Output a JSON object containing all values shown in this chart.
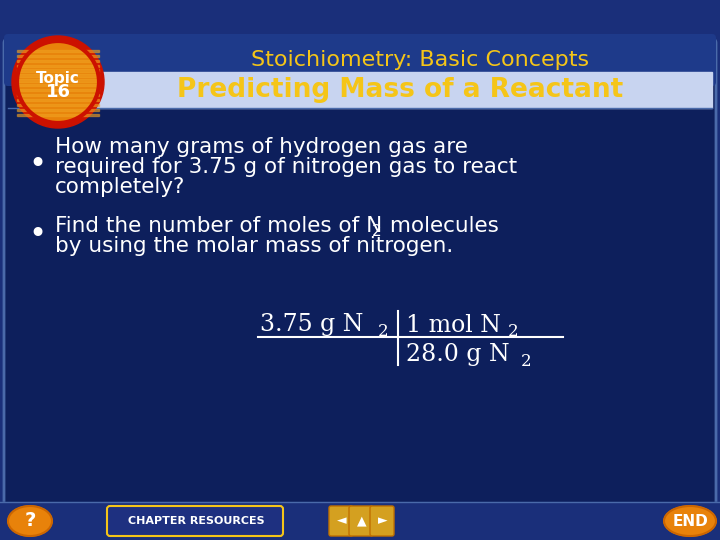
{
  "bg_color": "#0d1f5c",
  "outer_bg": "#1a2f7a",
  "header_bg": "#1e3a8a",
  "title_text": "Stoichiometry: Basic Concepts",
  "title_color": "#f5c518",
  "subtitle_text": "Predicting Mass of a Reactant",
  "subtitle_color": "#f5c518",
  "topic_label_line1": "Topic",
  "topic_label_line2": "16",
  "topic_orange": "#e8820a",
  "topic_red_ring": "#cc1100",
  "topic_yellow_stripes": "#f0a020",
  "bullet1_line1": "How many grams of hydrogen gas are",
  "bullet1_line2": "required for 3.75 g of nitrogen gas to react",
  "bullet1_line3": "completely?",
  "bullet2_line1a": "Find the number of moles of N",
  "bullet2_sub": "2",
  "bullet2_line1b": " molecules",
  "bullet2_line2": "by using the molar mass of nitrogen.",
  "text_color": "#ffffff",
  "formula_color": "#ffffff",
  "bottom_bg": "#1a2f7a",
  "chapter_resources": "CHAPTER RESOURCES",
  "chapter_res_bg": "#1e3080",
  "chapter_res_border": "#f5c518",
  "end_text": "END",
  "nav_color": "#e8820a",
  "nav_border": "#cc6600",
  "question_mark": "?",
  "slide_border": "#4a6aaa",
  "figw": 7.2,
  "figh": 5.4,
  "dpi": 100
}
